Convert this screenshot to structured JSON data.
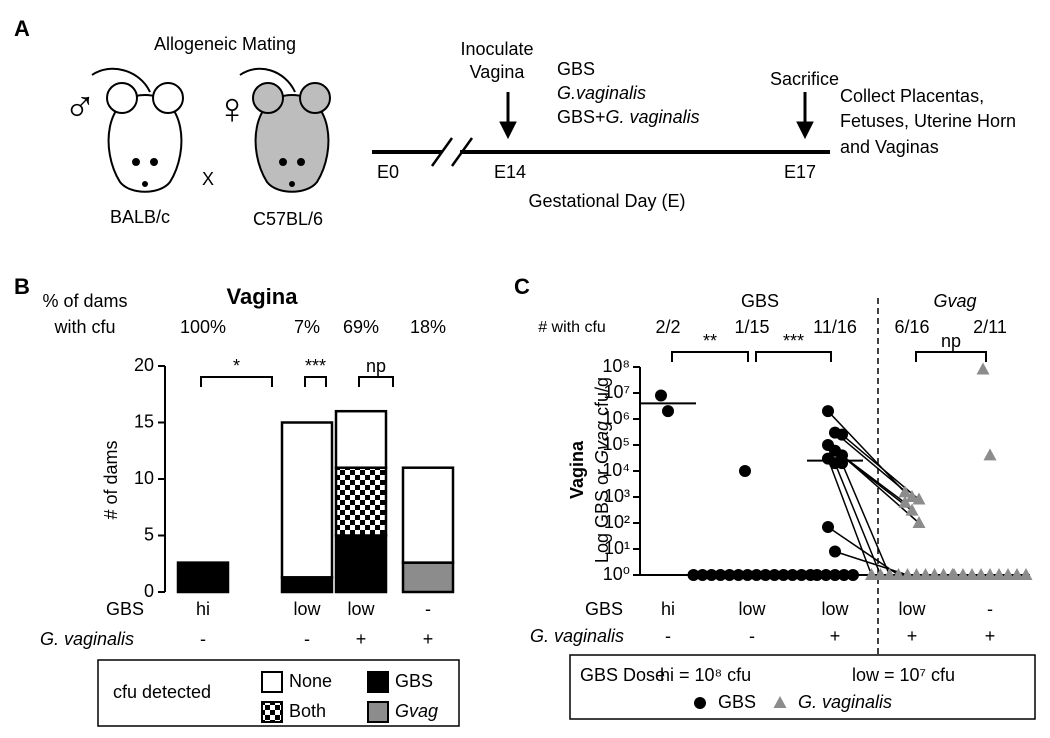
{
  "panel_a": {
    "label": "A",
    "mating_title": "Allogeneic Mating",
    "male_symbol": "♂",
    "female_symbol": "♀",
    "cross": "X",
    "male_strain": "BALB/c",
    "female_strain": "C57BL/6",
    "timeline": {
      "ticks": [
        "E0",
        "E14",
        "E17"
      ],
      "xlabel": "Gestational Day (E)",
      "inoculate": [
        "Inoculate",
        "Vagina"
      ],
      "inocula": [
        "GBS",
        "G.vaginalis",
        "GBS+",
        "G. vaginalis"
      ],
      "sacrifice": "Sacrifice",
      "collect": [
        "Collect Placentas,",
        "Fetuses, Uterine Horn",
        "and Vaginas"
      ]
    }
  },
  "chart_data": [
    {
      "type": "stacked_bar",
      "panel_label": "B",
      "title": "Vagina",
      "header_label": [
        "% of dams",
        "with cfu"
      ],
      "percent_labels": [
        "100%",
        "7%",
        "69%",
        "18%"
      ],
      "significance": [
        "*",
        "***",
        "np"
      ],
      "ylabel": "# of dams",
      "ylim": [
        0,
        20
      ],
      "yticks": [
        0,
        5,
        10,
        15,
        20
      ],
      "row_labels": [
        "GBS",
        "G. vaginalis"
      ],
      "rows": [
        [
          "hi",
          "low",
          "low",
          "-"
        ],
        [
          "-",
          "-",
          "+",
          "+"
        ]
      ],
      "legend_title": "cfu detected",
      "series": [
        {
          "name": "GBS",
          "color": "#000000",
          "values": [
            2.6,
            1.3,
            5,
            0
          ]
        },
        {
          "name": "Both",
          "color": "checker",
          "values": [
            0,
            0,
            6,
            0
          ]
        },
        {
          "name": "Gvag",
          "color": "#8c8c8c",
          "values": [
            0,
            0,
            0,
            2.6
          ]
        },
        {
          "name": "None",
          "color": "#ffffff",
          "values": [
            0,
            13.7,
            5,
            8.4
          ]
        }
      ]
    },
    {
      "type": "dot_plot",
      "panel_label": "C",
      "group_labels": [
        "GBS",
        "Gvag"
      ],
      "count_label": "# with cfu",
      "count_labels": [
        "2/2",
        "1/15",
        "11/16",
        "6/16",
        "2/11"
      ],
      "significance": [
        "**",
        "***",
        "np"
      ],
      "ylabel": [
        "Vagina",
        "Log GBS or ",
        "Gvag",
        " cfu/g"
      ],
      "log_scale": true,
      "ylim": [
        1,
        100000000
      ],
      "yticks": [
        {
          "value": 1,
          "label": "10⁰"
        },
        {
          "value": 10,
          "label": "10¹"
        },
        {
          "value": 100,
          "label": "10²"
        },
        {
          "value": 1000,
          "label": "10³"
        },
        {
          "value": 10000,
          "label": "10⁴"
        },
        {
          "value": 100000,
          "label": "10⁵"
        },
        {
          "value": 1000000,
          "label": "10⁶"
        },
        {
          "value": 10000000,
          "label": "10⁷"
        },
        {
          "value": 100000000,
          "label": "10⁸"
        }
      ],
      "row_labels": [
        "GBS",
        "G. vaginalis"
      ],
      "rows": [
        [
          "hi",
          "low",
          "low",
          "low",
          "-"
        ],
        [
          "-",
          "-",
          "+",
          "+",
          "+"
        ]
      ],
      "legend_note": [
        "GBS Dose",
        "hi = 10⁸ cfu",
        "low = 10⁷ cfu"
      ],
      "series": [
        {
          "name": "GBS",
          "color": "#000000",
          "marker": "circle",
          "medians": [
            4000000,
            null,
            25000,
            null,
            null
          ],
          "values": [
            [
              8000000,
              2000000
            ],
            [
              10000,
              1,
              1,
              1,
              1,
              1,
              1,
              1,
              1,
              1,
              1,
              1,
              1,
              1,
              1
            ],
            [
              2000000,
              300000,
              250000,
              100000,
              60000,
              40000,
              30000,
              20000,
              20000,
              70,
              8,
              1,
              1,
              1,
              1,
              1
            ],
            [],
            []
          ]
        },
        {
          "name": "G. vaginalis",
          "color": "#8c8c8c",
          "marker": "triangle",
          "medians": [
            null,
            null,
            null,
            null,
            null
          ],
          "values": [
            [],
            [],
            [],
            [
              1500,
              1000,
              800,
              600,
              300,
              100,
              1,
              1,
              1,
              1,
              1,
              1,
              1,
              1,
              1,
              1
            ],
            [
              80000000,
              40000,
              1,
              1,
              1,
              1,
              1,
              1,
              1,
              1,
              1
            ]
          ]
        }
      ]
    }
  ]
}
